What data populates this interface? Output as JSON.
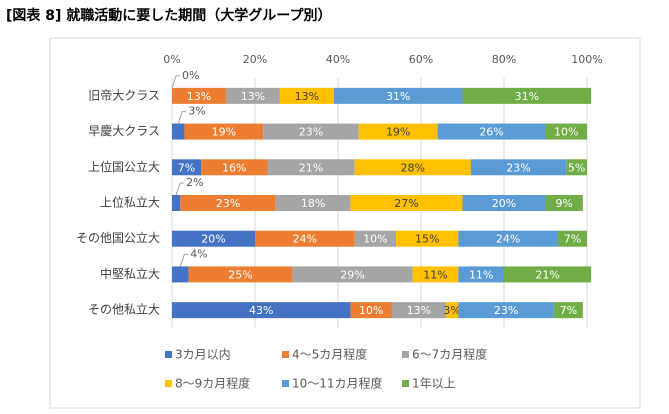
{
  "chart_data": {
    "type": "stacked-bar-horizontal",
    "title": "[図表 8] 就職活動に要した期間（大学グループ別）",
    "categories": [
      "旧帝大クラス",
      "早慶大クラス",
      "上位国公立大",
      "上位私立大",
      "その他国公立大",
      "中堅私立大",
      "その他私立大"
    ],
    "series": [
      {
        "name": "3カ月以内",
        "color": "#4472c4",
        "values": [
          0,
          3,
          7,
          2,
          20,
          4,
          43
        ],
        "value_labels": [
          "0%",
          "3%",
          "7%",
          "2%",
          "20%",
          "4%",
          "43%"
        ]
      },
      {
        "name": "4～5カ月程度",
        "color": "#ed7d31",
        "values": [
          13,
          19,
          16,
          23,
          24,
          25,
          10
        ],
        "value_labels": [
          "13%",
          "19%",
          "16%",
          "23%",
          "24%",
          "25%",
          "10%"
        ]
      },
      {
        "name": "6～7カ月程度",
        "color": "#a5a5a5",
        "values": [
          13,
          23,
          21,
          18,
          10,
          29,
          13
        ],
        "value_labels": [
          "13%",
          "23%",
          "21%",
          "18%",
          "10%",
          "29%",
          "13%"
        ]
      },
      {
        "name": "8～9カ月程度",
        "color": "#ffc000",
        "values": [
          13,
          19,
          28,
          27,
          15,
          11,
          3
        ],
        "value_labels": [
          "13%",
          "19%",
          "28%",
          "27%",
          "15%",
          "11%",
          "3%"
        ]
      },
      {
        "name": "10～11カ月程度",
        "color": "#5b9bd5",
        "values": [
          31,
          26,
          23,
          20,
          24,
          11,
          23
        ],
        "value_labels": [
          "31%",
          "26%",
          "23%",
          "20%",
          "24%",
          "11%",
          "23%"
        ]
      },
      {
        "name": "1年以上",
        "color": "#70ad47",
        "values": [
          31,
          10,
          5,
          9,
          7,
          21,
          7
        ],
        "value_labels": [
          "31%",
          "10%",
          "5%",
          "9%",
          "7%",
          "21%",
          "7%"
        ]
      }
    ],
    "xlim": [
      0,
      100
    ],
    "xticks": [
      {
        "value": 0,
        "label": "0%"
      },
      {
        "value": 20,
        "label": "20%"
      },
      {
        "value": 40,
        "label": "40%"
      },
      {
        "value": 60,
        "label": "60%"
      },
      {
        "value": 80,
        "label": "80%"
      },
      {
        "value": 100,
        "label": "100%"
      }
    ],
    "grid": true
  }
}
